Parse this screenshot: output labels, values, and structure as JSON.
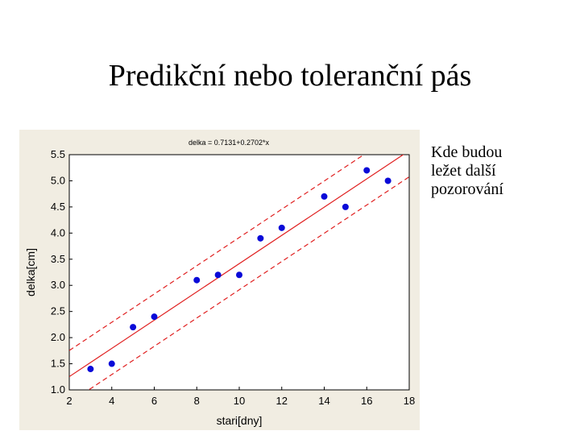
{
  "slide": {
    "title": "Predikční nebo toleranční pás",
    "note_lines": [
      "Kde budou",
      "ležet další",
      "pozorování"
    ]
  },
  "chart_data": {
    "type": "scatter",
    "title": "delka = 0.7131+0.2702*x",
    "xlabel": "stari[dny]",
    "ylabel": "delka[cm]",
    "xlim": [
      2,
      18
    ],
    "ylim": [
      1.0,
      5.5
    ],
    "x_ticks": [
      2,
      4,
      6,
      8,
      10,
      12,
      14,
      16,
      18
    ],
    "y_ticks": [
      1.0,
      1.5,
      2.0,
      2.5,
      3.0,
      3.5,
      4.0,
      4.5,
      5.0,
      5.5
    ],
    "grid": false,
    "points": [
      {
        "x": 3,
        "y": 1.4
      },
      {
        "x": 4,
        "y": 1.5
      },
      {
        "x": 5,
        "y": 2.2
      },
      {
        "x": 6,
        "y": 2.4
      },
      {
        "x": 8,
        "y": 3.1
      },
      {
        "x": 9,
        "y": 3.2
      },
      {
        "x": 10,
        "y": 3.2
      },
      {
        "x": 11,
        "y": 3.9
      },
      {
        "x": 12,
        "y": 4.1
      },
      {
        "x": 14,
        "y": 4.7
      },
      {
        "x": 15,
        "y": 4.5
      },
      {
        "x": 16,
        "y": 5.2
      },
      {
        "x": 17,
        "y": 5.0
      }
    ],
    "fit": {
      "intercept": 0.7131,
      "slope": 0.2702
    },
    "band_halfwidth": 0.5,
    "colors": {
      "points": "#0a0ad8",
      "fit": "#e02020",
      "band": "#e02020",
      "panel": "#f1ede2"
    }
  }
}
